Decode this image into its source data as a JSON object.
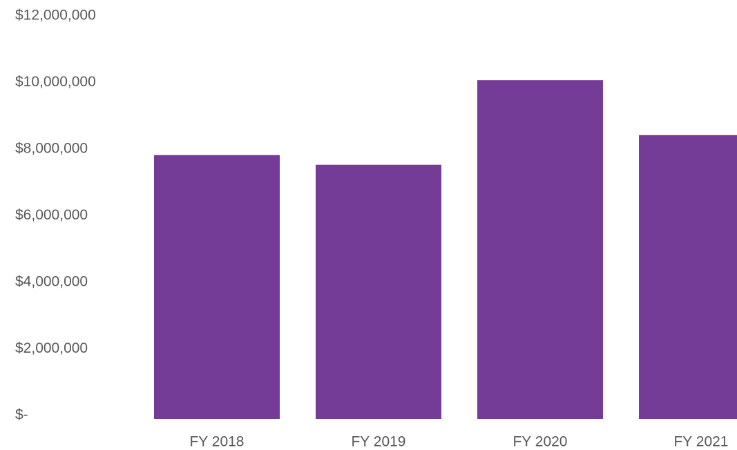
{
  "chart_data": {
    "type": "bar",
    "categories": [
      "FY 2018",
      "FY 2019",
      "FY 2020",
      "FY 2021"
    ],
    "values": [
      7840000,
      7550000,
      10090000,
      8440000
    ],
    "color": "#743c96",
    "ylim": [
      0,
      12000000
    ],
    "yticks": [
      {
        "value": 0,
        "label": "$-"
      },
      {
        "value": 2000000,
        "label": "$2,000,000"
      },
      {
        "value": 4000000,
        "label": "$4,000,000"
      },
      {
        "value": 6000000,
        "label": "$6,000,000"
      },
      {
        "value": 8000000,
        "label": "$8,000,000"
      },
      {
        "value": 10000000,
        "label": "$10,000,000"
      },
      {
        "value": 12000000,
        "label": "$12,000,000"
      }
    ],
    "grid": false
  }
}
